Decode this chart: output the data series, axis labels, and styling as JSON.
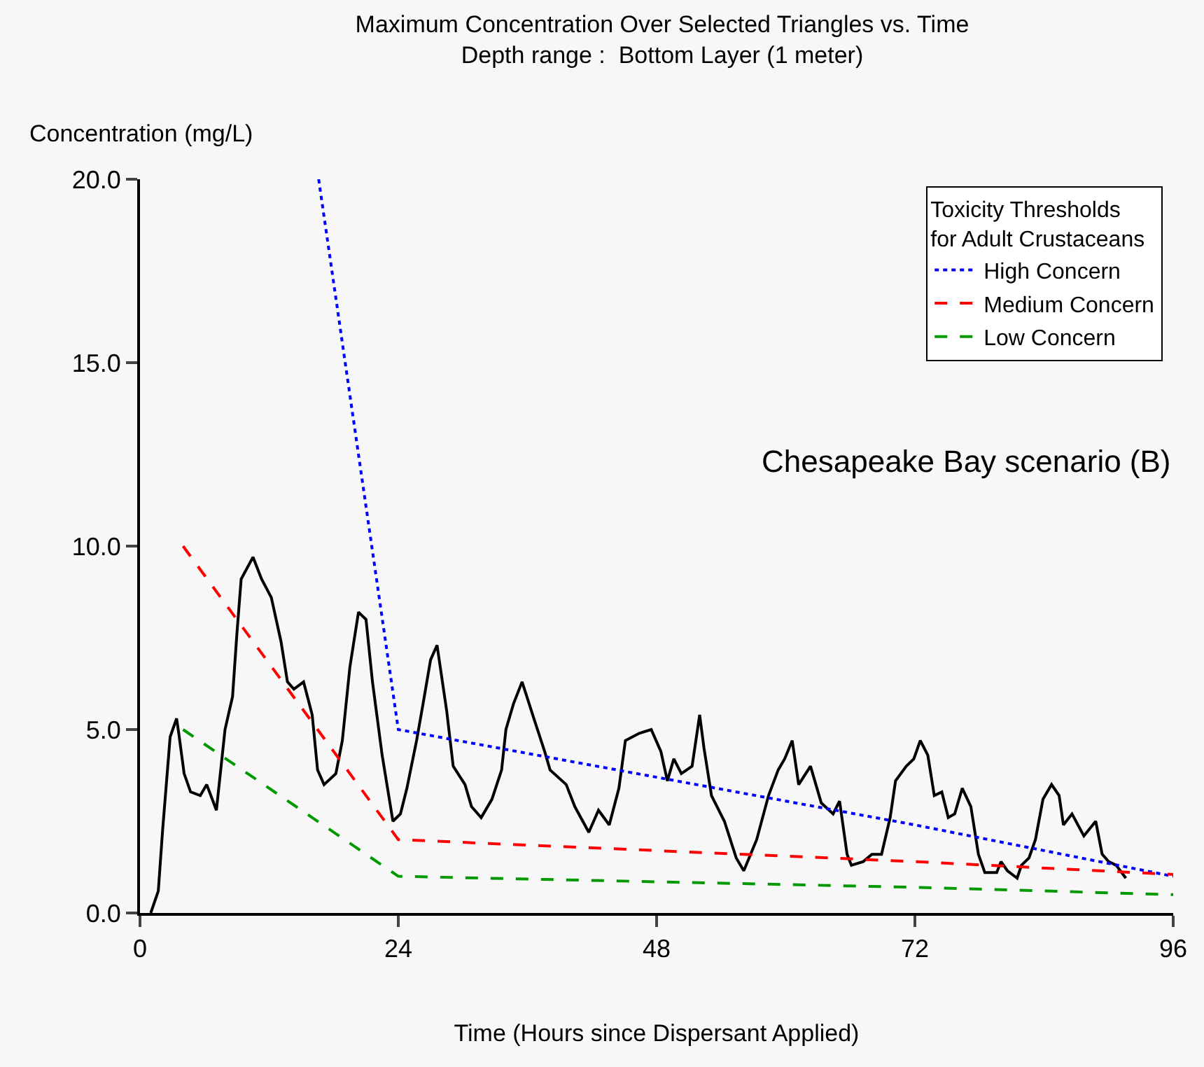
{
  "chart_data": {
    "type": "line",
    "title": "Maximum Concentration Over Selected Triangles vs. Time\nDepth range :  Bottom Layer (1 meter)",
    "xlabel": "Time (Hours since Dispersant Applied)",
    "ylabel": "Concentration (mg/L)",
    "legend_title": "Toxicity Thresholds\nfor Adult Crustaceans",
    "legend": "top right",
    "grid": false,
    "marker": "none",
    "annotations": [
      "Chesapeake Bay scenario (B)"
    ],
    "xlim": [
      0,
      96
    ],
    "xticks": [
      0,
      24,
      48,
      72,
      96
    ],
    "ylim": [
      0,
      20
    ],
    "yticks": [
      {
        "value": 0,
        "label": "0.0"
      },
      {
        "value": 5,
        "label": "5.0"
      },
      {
        "value": 10,
        "label": "10.0"
      },
      {
        "value": 15,
        "label": "15.0"
      },
      {
        "value": 20,
        "label": "20.0"
      }
    ],
    "series": [
      {
        "color": "#000000",
        "line_style": "solid",
        "x": [
          1.0,
          1.7,
          2.1,
          2.8,
          3.4,
          3.6,
          4.1,
          4.7,
          5.6,
          6.2,
          7.1,
          7.9,
          8.6,
          9.0,
          9.4,
          10.5,
          11.3,
          12.2,
          13.1,
          13.7,
          14.3,
          15.2,
          16.0,
          16.5,
          17.1,
          18.2,
          18.8,
          19.5,
          20.3,
          21.0,
          21.6,
          22.5,
          23.5,
          24.2,
          24.8,
          25.7,
          26.3,
          27.0,
          27.6,
          28.5,
          29.1,
          30.2,
          30.8,
          31.7,
          32.7,
          33.6,
          34.0,
          34.7,
          35.5,
          36.6,
          37.6,
          38.1,
          39.6,
          40.4,
          41.7,
          42.6,
          43.6,
          44.5,
          45.1,
          46.4,
          47.5,
          48.4,
          49.0,
          49.6,
          50.3,
          51.3,
          52.0,
          52.4,
          53.1,
          54.3,
          55.4,
          56.1,
          57.3,
          58.4,
          59.3,
          59.9,
          60.6,
          61.2,
          62.3,
          63.3,
          64.4,
          65.0,
          65.7,
          66.1,
          67.2,
          68.0,
          68.9,
          69.7,
          70.2,
          71.2,
          71.9,
          72.5,
          73.2,
          73.8,
          74.5,
          75.1,
          75.7,
          76.4,
          77.2,
          77.9,
          78.5,
          79.6,
          80.0,
          80.6,
          81.5,
          81.9,
          82.6,
          83.2,
          83.9,
          84.7,
          85.4,
          85.8,
          86.6,
          87.7,
          88.8,
          89.4,
          90.0,
          90.7,
          91.6
        ],
        "values": [
          0.0,
          0.6,
          2.25,
          4.8,
          5.3,
          4.9,
          3.8,
          3.3,
          3.2,
          3.5,
          2.8,
          5.0,
          5.9,
          7.6,
          9.1,
          9.7,
          9.1,
          8.6,
          7.4,
          6.3,
          6.1,
          6.3,
          5.4,
          3.9,
          3.5,
          3.8,
          4.7,
          6.7,
          8.2,
          8.0,
          6.3,
          4.3,
          2.5,
          2.7,
          3.4,
          4.7,
          5.7,
          6.9,
          7.3,
          5.5,
          4.0,
          3.5,
          2.9,
          2.6,
          3.1,
          3.9,
          5.0,
          5.7,
          6.3,
          5.3,
          4.4,
          3.9,
          3.5,
          2.9,
          2.2,
          2.8,
          2.4,
          3.4,
          4.7,
          4.9,
          5.0,
          4.4,
          3.6,
          4.2,
          3.8,
          4.0,
          5.4,
          4.5,
          3.2,
          2.5,
          1.5,
          1.15,
          2.0,
          3.2,
          3.9,
          4.2,
          4.7,
          3.5,
          4.0,
          3.0,
          2.7,
          3.05,
          1.6,
          1.3,
          1.4,
          1.6,
          1.6,
          2.6,
          3.6,
          4.0,
          4.2,
          4.7,
          4.3,
          3.2,
          3.3,
          2.6,
          2.7,
          3.4,
          2.9,
          1.6,
          1.1,
          1.1,
          1.4,
          1.15,
          0.95,
          1.3,
          1.5,
          2.0,
          3.1,
          3.5,
          3.2,
          2.4,
          2.7,
          2.1,
          2.5,
          1.6,
          1.4,
          1.3,
          0.95
        ]
      },
      {
        "name": "High Concern",
        "color": "#0000ff",
        "line_style": "dotted",
        "x": [
          16.6,
          24,
          48,
          72,
          96
        ],
        "values": [
          20,
          5,
          3.7,
          2.4,
          1.0
        ]
      },
      {
        "name": "Medium Concern",
        "color": "#ff0000",
        "line_style": "dashed",
        "x": [
          4,
          24,
          48,
          72,
          96
        ],
        "values": [
          10,
          2,
          1.7,
          1.4,
          1.05
        ]
      },
      {
        "name": "Low Concern",
        "color": "#009900",
        "line_style": "dashed",
        "x": [
          4,
          24,
          48,
          72,
          96
        ],
        "values": [
          5,
          1,
          0.85,
          0.7,
          0.5
        ]
      }
    ]
  }
}
